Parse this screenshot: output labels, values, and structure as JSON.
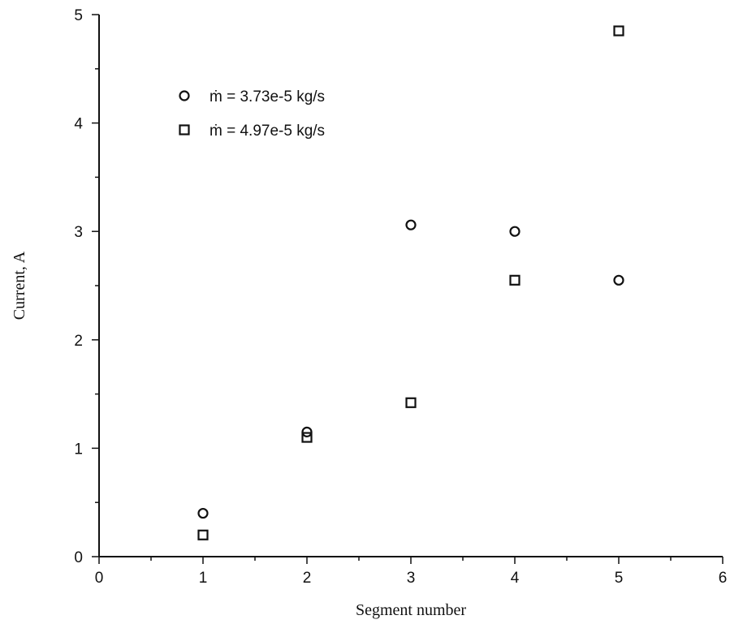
{
  "chart_data": {
    "type": "scatter",
    "xlabel": "Segment number",
    "ylabel": "Current, A",
    "xlim": [
      0,
      6
    ],
    "ylim": [
      0,
      5
    ],
    "xticks": [
      0,
      1,
      2,
      3,
      4,
      5,
      6
    ],
    "yticks": [
      0,
      1,
      2,
      3,
      4,
      5
    ],
    "grid": false,
    "legend_position": "top-left",
    "series": [
      {
        "name": "ṁ = 3.73e-5 kg/s",
        "marker": "circle",
        "color": "#111111",
        "x": [
          1,
          2,
          3,
          4,
          5
        ],
        "y": [
          0.4,
          1.15,
          3.06,
          3.0,
          2.55
        ]
      },
      {
        "name": "ṁ = 4.97e-5 kg/s",
        "marker": "square",
        "color": "#111111",
        "x": [
          1,
          2,
          3,
          4,
          5
        ],
        "y": [
          0.2,
          1.1,
          1.42,
          2.55,
          4.85
        ]
      }
    ]
  }
}
